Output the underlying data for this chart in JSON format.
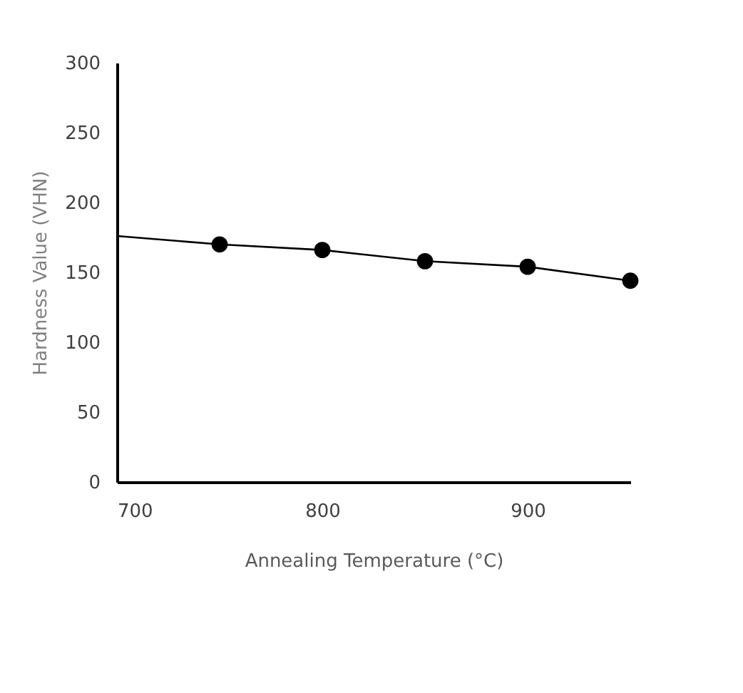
{
  "chart_data": {
    "type": "line",
    "xlabel": "Annealing Temperature (°C)",
    "ylabel": "Hardness Value  (VHN)",
    "xlim": [
      700,
      950
    ],
    "xticks": [
      700,
      800,
      900
    ],
    "ylim": [
      0,
      300
    ],
    "yticks": [
      0,
      50,
      100,
      150,
      200,
      250,
      300
    ],
    "grid": false,
    "series": [
      {
        "color": "#000000",
        "marker": "none",
        "line_style": "solid",
        "x": [
          700,
          750,
          800,
          850,
          900,
          950
        ],
        "values": [
          176,
          170,
          166,
          158,
          154,
          144
        ]
      },
      {
        "type": "scatter",
        "color": "#000000",
        "marker": "circle",
        "x": [
          750,
          800,
          850,
          900,
          950
        ],
        "values": [
          170,
          166,
          158,
          154,
          144
        ]
      }
    ]
  }
}
